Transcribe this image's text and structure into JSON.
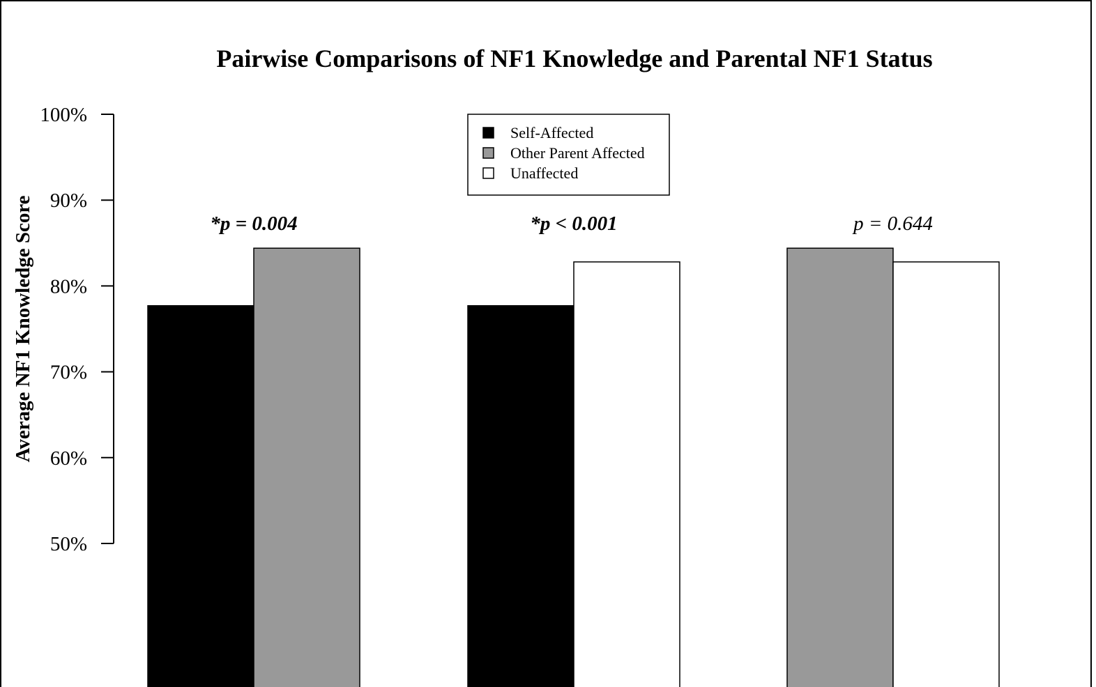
{
  "chart_data": {
    "type": "bar",
    "title": "Pairwise Comparisons of NF1 Knowledge and Parental NF1 Status",
    "xlabel": "",
    "ylabel": "Average NF1 Knowledge Score",
    "ylim": [
      50,
      100
    ],
    "yticks": [
      "50%",
      "60%",
      "70%",
      "80%",
      "90%",
      "100%"
    ],
    "ytick_values": [
      50,
      60,
      70,
      80,
      90,
      100
    ],
    "grid": false,
    "legend_position": "top-center",
    "legend": [
      {
        "name": "Self-Affected",
        "color": "#000000"
      },
      {
        "name": "Other Parent Affected",
        "color": "#999999"
      },
      {
        "name": "Unaffected",
        "color": "#ffffff"
      }
    ],
    "groups": [
      {
        "p_label": "*p = 0.004",
        "significant": true,
        "bars": [
          {
            "series": "Self-Affected",
            "value": 77.7,
            "color": "#000000"
          },
          {
            "series": "Other Parent Affected",
            "value": 84.4,
            "color": "#999999"
          }
        ]
      },
      {
        "p_label": "*p < 0.001",
        "significant": true,
        "bars": [
          {
            "series": "Self-Affected",
            "value": 77.7,
            "color": "#000000"
          },
          {
            "series": "Unaffected",
            "value": 82.8,
            "color": "#ffffff"
          }
        ]
      },
      {
        "p_label": "p = 0.644",
        "significant": false,
        "bars": [
          {
            "series": "Other Parent Affected",
            "value": 84.4,
            "color": "#999999"
          },
          {
            "series": "Unaffected",
            "value": 82.8,
            "color": "#ffffff"
          }
        ]
      }
    ]
  }
}
